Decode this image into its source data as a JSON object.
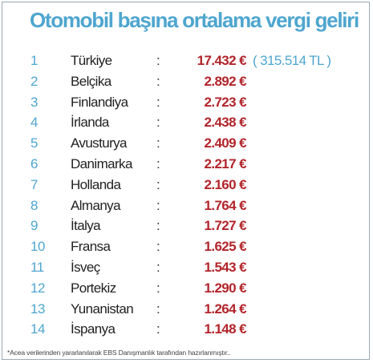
{
  "title": "Otomobil başına ortalama vergi geliri",
  "separator": ":",
  "rows": [
    {
      "rank": "1",
      "country": "Türkiye",
      "value": "17.432 €",
      "extra": "( 315.514 TL )"
    },
    {
      "rank": "2",
      "country": "Belçika",
      "value": "2.892 €"
    },
    {
      "rank": "3",
      "country": "Finlandiya",
      "value": "2.723 €"
    },
    {
      "rank": "4",
      "country": "İrlanda",
      "value": "2.438 €"
    },
    {
      "rank": "5",
      "country": "Avusturya",
      "value": "2.409 €"
    },
    {
      "rank": "6",
      "country": "Danimarka",
      "value": "2.217 €"
    },
    {
      "rank": "7",
      "country": "Hollanda",
      "value": "2.160 €"
    },
    {
      "rank": "8",
      "country": "Almanya",
      "value": "1.764 €"
    },
    {
      "rank": "9",
      "country": "İtalya",
      "value": "1.727 €"
    },
    {
      "rank": "10",
      "country": "Fransa",
      "value": "1.625 €"
    },
    {
      "rank": "11",
      "country": "İsveç",
      "value": "1.543 €"
    },
    {
      "rank": "12",
      "country": "Portekiz",
      "value": "1.290 €"
    },
    {
      "rank": "13",
      "country": "Yunanistan",
      "value": "1.264 €"
    },
    {
      "rank": "14",
      "country": "İspanya",
      "value": "1.148 €"
    }
  ],
  "footnote": "*Acea verilerinden yararlanılarak EBS Danışmanlık tarafından hazırlanmıştır..",
  "colors": {
    "title": "#4ea6cf",
    "rank": "#4ea6cf",
    "value": "#b2242a",
    "border": "#9aa8b4"
  }
}
